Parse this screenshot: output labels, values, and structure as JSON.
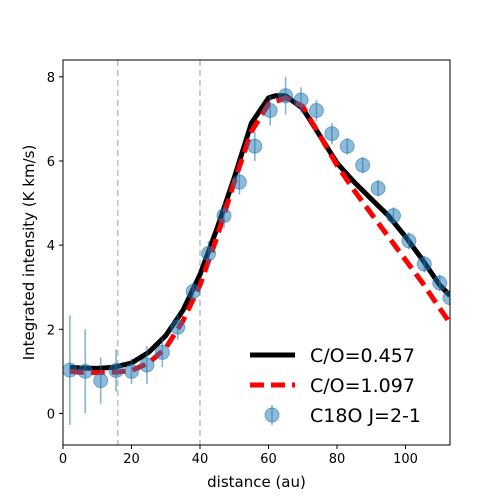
{
  "chart_data": {
    "type": "line",
    "xlabel": "distance (au)",
    "ylabel": "Integrated intensity (K km/s)",
    "xlim": [
      0,
      113
    ],
    "ylim": [
      -0.75,
      8.4
    ],
    "xticks": [
      0,
      20,
      40,
      60,
      80,
      100
    ],
    "yticks": [
      0,
      2,
      4,
      6,
      8
    ],
    "vlines": [
      16,
      40
    ],
    "grid": false,
    "legend_position": "lower-right",
    "series": [
      {
        "name": "C/O=0.457",
        "style": "solid",
        "color": "#000000",
        "x": [
          2,
          5,
          10,
          15,
          20,
          25,
          30,
          35,
          40,
          45,
          50,
          55,
          60,
          62,
          65,
          70,
          75,
          80,
          85,
          90,
          95,
          100,
          105,
          110,
          113
        ],
        "y": [
          1.1,
          1.08,
          1.07,
          1.1,
          1.2,
          1.45,
          1.85,
          2.45,
          3.3,
          4.4,
          5.6,
          6.9,
          7.5,
          7.55,
          7.55,
          7.25,
          6.6,
          5.95,
          5.5,
          5.1,
          4.7,
          4.2,
          3.65,
          3.05,
          2.8
        ]
      },
      {
        "name": "C/O=1.097",
        "style": "dashed",
        "color": "#ff0000",
        "x": [
          2,
          5,
          10,
          15,
          20,
          25,
          30,
          35,
          40,
          45,
          50,
          55,
          60,
          65,
          70,
          75,
          80,
          85,
          90,
          95,
          100,
          105,
          110,
          113
        ],
        "y": [
          1.0,
          0.98,
          0.97,
          0.98,
          1.02,
          1.2,
          1.55,
          2.2,
          3.05,
          4.2,
          5.5,
          6.7,
          7.35,
          7.5,
          7.3,
          6.6,
          5.9,
          5.3,
          4.75,
          4.2,
          3.65,
          3.1,
          2.5,
          2.15
        ]
      },
      {
        "name": "C18O J=2-1",
        "style": "markers",
        "color": "#1f77b4",
        "x": [
          2,
          6.5,
          11,
          15.5,
          20,
          24.5,
          29,
          33.5,
          38,
          42.5,
          47,
          51.5,
          56,
          60.5,
          65,
          69.5,
          74,
          78.5,
          83,
          87.5,
          92,
          96.5,
          101,
          105.5,
          110,
          113
        ],
        "y": [
          1.03,
          1.0,
          0.78,
          1.02,
          1.0,
          1.15,
          1.45,
          2.05,
          2.9,
          3.8,
          4.7,
          5.5,
          6.35,
          7.2,
          7.55,
          7.45,
          7.2,
          6.65,
          6.35,
          5.9,
          5.35,
          4.7,
          4.1,
          3.55,
          3.1,
          2.75
        ],
        "yerr": [
          1.3,
          1.0,
          0.55,
          0.5,
          0.3,
          0.45,
          0.35,
          0.3,
          0.2,
          0.3,
          0.3,
          0.3,
          0.35,
          0.35,
          0.45,
          0.3,
          0.25,
          0.25,
          0.2,
          0.2,
          0.2,
          0.2,
          0.2,
          0.2,
          0.2,
          0.2
        ]
      }
    ]
  }
}
